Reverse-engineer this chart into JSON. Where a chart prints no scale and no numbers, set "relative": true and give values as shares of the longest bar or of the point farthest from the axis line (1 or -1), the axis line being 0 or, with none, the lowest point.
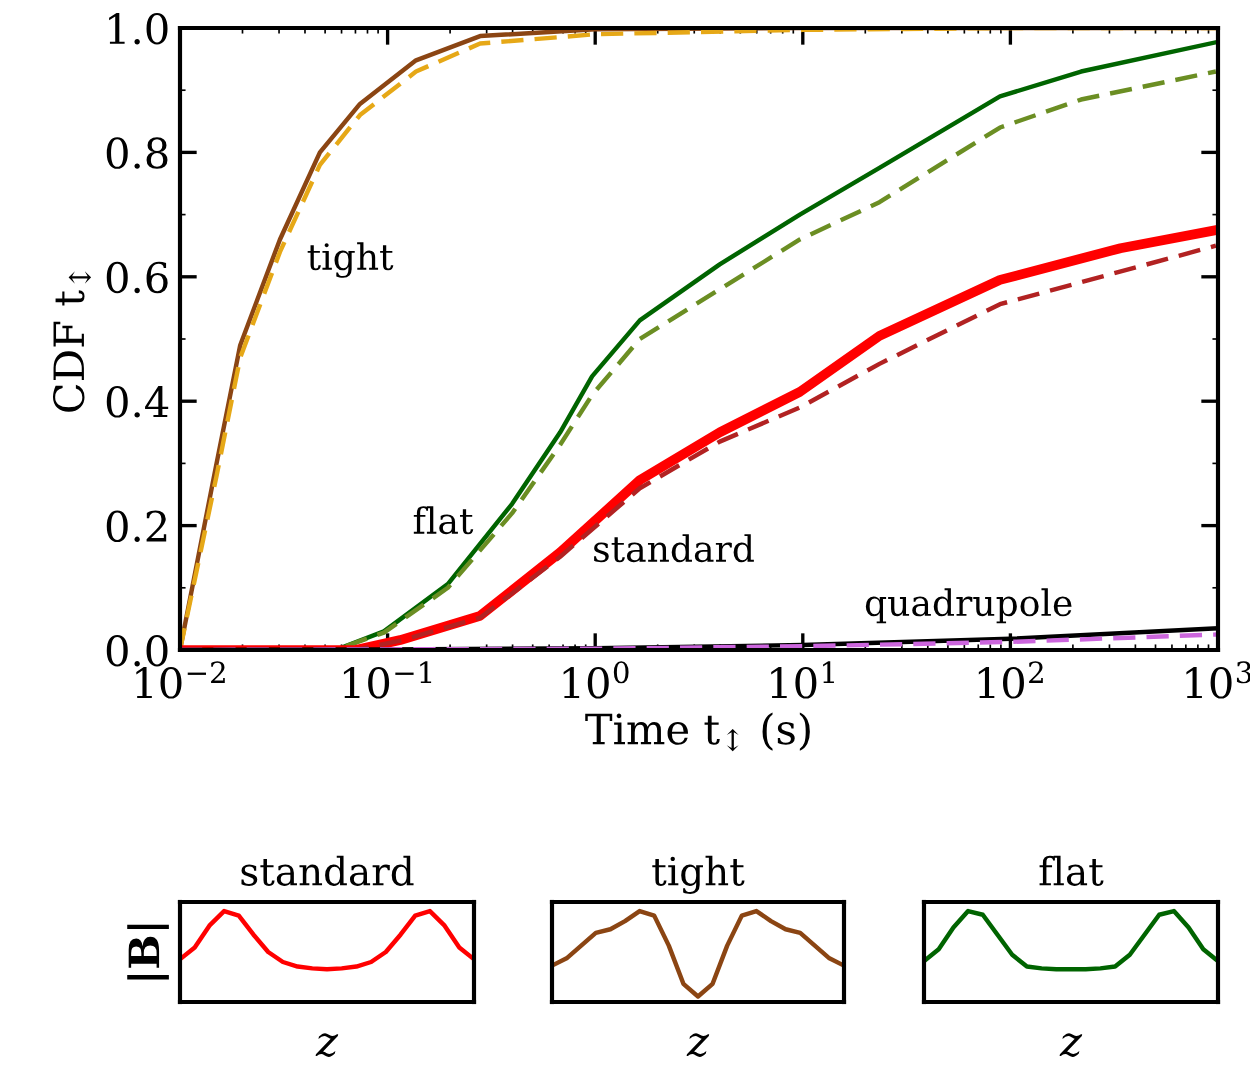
{
  "chart_data": [
    {
      "type": "line",
      "xlabel": "Time t$_{↕}$ (s)",
      "ylabel": "CDF t$_{↕}$",
      "log": "x",
      "grid": false,
      "xlim": [
        0.01,
        1000
      ],
      "ylim": [
        0,
        1
      ],
      "xticks": [
        {
          "value": 0.01,
          "label": "10$^{−2}$"
        },
        {
          "value": 0.1,
          "label": "10$^{−1}$"
        },
        {
          "value": 1,
          "label": "10$^{0}$"
        },
        {
          "value": 10,
          "label": "10$^{1}$"
        },
        {
          "value": 100,
          "label": "10$^{2}$"
        },
        {
          "value": 1000,
          "label": "10$^{3}$"
        }
      ],
      "yticks": [
        {
          "value": 0,
          "label": "0.0"
        },
        0.2,
        0.4,
        0.6,
        0.8,
        {
          "value": 1,
          "label": "1.0"
        }
      ],
      "series": [
        {
          "color": "#8b4513",
          "line_style": "solid",
          "x": [
            0.01,
            0.015,
            0.0195,
            0.0303,
            0.0472,
            0.0736,
            0.137,
            0.279,
            1,
            10,
            1000
          ],
          "values": [
            0,
            0.3,
            0.49,
            0.66,
            0.8,
            0.878,
            0.948,
            0.987,
            0.998,
            1.0,
            1.0
          ]
        },
        {
          "color": "#e6a817",
          "line_style": "dashed",
          "x": [
            0.01,
            0.015,
            0.0195,
            0.0303,
            0.0472,
            0.0736,
            0.137,
            0.279,
            1,
            10,
            100,
            1000
          ],
          "values": [
            0,
            0.28,
            0.47,
            0.64,
            0.78,
            0.86,
            0.93,
            0.975,
            0.99,
            0.997,
            1.0,
            1.0
          ]
        },
        {
          "color": "#006400",
          "line_style": "solid",
          "x": [
            0.01,
            0.056,
            0.096,
            0.195,
            0.398,
            0.678,
            0.966,
            1.64,
            3.98,
            9.68,
            23.4,
            89.1,
            219,
            977
          ],
          "values": [
            0,
            0,
            0.03,
            0.106,
            0.235,
            0.35,
            0.44,
            0.53,
            0.62,
            0.7,
            0.775,
            0.89,
            0.93,
            0.977
          ]
        },
        {
          "color": "#6b8e23",
          "line_style": "dashed",
          "x": [
            0.01,
            0.056,
            0.096,
            0.195,
            0.398,
            0.678,
            0.966,
            1.64,
            3.98,
            9.68,
            23.4,
            89.1,
            219,
            977
          ],
          "values": [
            0,
            0,
            0.028,
            0.1,
            0.22,
            0.33,
            0.41,
            0.5,
            0.58,
            0.66,
            0.72,
            0.84,
            0.885,
            0.93
          ]
        },
        {
          "color": "#ff0000",
          "line_style": "solid",
          "x": [
            0.01,
            0.07,
            0.115,
            0.279,
            0.678,
            1.64,
            3.98,
            9.68,
            23.4,
            89.1,
            339,
            977
          ],
          "values": [
            0,
            0,
            0.016,
            0.055,
            0.157,
            0.273,
            0.35,
            0.415,
            0.505,
            0.595,
            0.646,
            0.675
          ]
        },
        {
          "color": "#b22222",
          "line_style": "dashed",
          "x": [
            0.01,
            0.07,
            0.115,
            0.279,
            0.678,
            1.64,
            3.98,
            9.68,
            23.4,
            89.1,
            977
          ],
          "values": [
            0,
            0,
            0.015,
            0.052,
            0.15,
            0.26,
            0.335,
            0.39,
            0.46,
            0.556,
            0.65
          ]
        },
        {
          "color": "#000000",
          "line_style": "solid",
          "x": [
            0.01,
            0.1,
            1,
            10,
            100,
            1000
          ],
          "values": [
            0,
            0.001,
            0.003,
            0.008,
            0.018,
            0.035
          ]
        },
        {
          "color": "#cc66dd",
          "line_style": "dashed",
          "x": [
            0.01,
            0.1,
            1,
            10,
            100,
            1000
          ],
          "values": [
            0,
            0.001,
            0.002,
            0.006,
            0.013,
            0.025
          ]
        }
      ],
      "annotations": [
        "tight",
        "flat",
        "standard",
        "quadrupole"
      ]
    },
    {
      "type": "line",
      "title": "standard",
      "xlabel": "z",
      "ylabel": "|B|",
      "relative": true,
      "categories": [
        null,
        null,
        null,
        null,
        null,
        null,
        null,
        null,
        null,
        null,
        null,
        null,
        null,
        null,
        null,
        null,
        null,
        null,
        null,
        null,
        null
      ],
      "series": [
        {
          "color": "#ff0000",
          "values": [
            0.47,
            0.6,
            0.84,
            1.0,
            0.95,
            0.74,
            0.55,
            0.44,
            0.39,
            0.37,
            0.36,
            0.37,
            0.39,
            0.44,
            0.55,
            0.74,
            0.95,
            1.0,
            0.84,
            0.6,
            0.47
          ]
        }
      ]
    },
    {
      "type": "line",
      "title": "tight",
      "xlabel": "z",
      "relative": true,
      "categories": [
        null,
        null,
        null,
        null,
        null,
        null,
        null,
        null,
        null,
        null,
        null,
        null,
        null,
        null,
        null,
        null,
        null,
        null,
        null,
        null,
        null
      ],
      "series": [
        {
          "color": "#8b4513",
          "values": [
            0.4,
            0.48,
            0.62,
            0.76,
            0.8,
            0.89,
            1.0,
            0.95,
            0.62,
            0.2,
            0.06,
            0.2,
            0.62,
            0.95,
            1.0,
            0.89,
            0.8,
            0.76,
            0.62,
            0.48,
            0.4
          ]
        }
      ]
    },
    {
      "type": "line",
      "title": "flat",
      "xlabel": "z",
      "relative": true,
      "categories": [
        null,
        null,
        null,
        null,
        null,
        null,
        null,
        null,
        null,
        null,
        null,
        null,
        null,
        null,
        null,
        null,
        null,
        null,
        null,
        null,
        null
      ],
      "series": [
        {
          "color": "#006400",
          "values": [
            0.45,
            0.58,
            0.82,
            1.0,
            0.96,
            0.74,
            0.52,
            0.39,
            0.37,
            0.36,
            0.36,
            0.36,
            0.37,
            0.39,
            0.52,
            0.74,
            0.96,
            1.0,
            0.82,
            0.58,
            0.45
          ]
        }
      ]
    }
  ]
}
